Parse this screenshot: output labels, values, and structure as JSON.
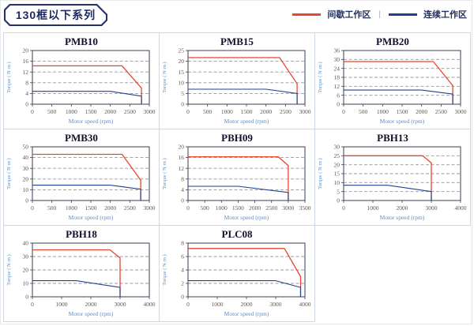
{
  "header": {
    "title": "130框以下系列",
    "legend": [
      {
        "label": "间歇工作区",
        "color": "#e8462c"
      },
      {
        "label": "连续工作区",
        "color": "#24418e"
      }
    ],
    "legend_separator": "|"
  },
  "colors": {
    "intermittent": "#e8462c",
    "continuous": "#24418e",
    "grid_line": "#999999",
    "plot_frame": "#3e3e52",
    "cell_border": "#cdd8e4",
    "axis_label_blue": "#5d8ec6",
    "tick_label": "#5f574e",
    "title_navy": "#1d2a66"
  },
  "chart_data": [
    {
      "type": "line",
      "title": "PMB10",
      "xlabel": "Motor speed (rpm)",
      "ylabel": "Torque ( N·m )",
      "xlim": [
        0,
        3000
      ],
      "xstep": 500,
      "ylim": [
        0,
        20
      ],
      "ystep": 4,
      "grid": "dashed-horizontal",
      "legend_position": "none",
      "series": [
        {
          "name": "间歇工作区",
          "color": "#e8462c",
          "points": [
            [
              0,
              14.3
            ],
            [
              2300,
              14.3
            ],
            [
              2800,
              6
            ],
            [
              2800,
              0
            ]
          ]
        },
        {
          "name": "连续工作区",
          "color": "#24418e",
          "points": [
            [
              0,
              4.8
            ],
            [
              2000,
              4.8
            ],
            [
              2800,
              3
            ],
            [
              2800,
              0
            ]
          ]
        }
      ]
    },
    {
      "type": "line",
      "title": "PMB15",
      "xlabel": "Motor speed (rpm)",
      "ylabel": "Torque ( N·m )",
      "xlim": [
        0,
        3000
      ],
      "xstep": 500,
      "ylim": [
        0,
        25
      ],
      "ystep": 5,
      "grid": "dashed-horizontal",
      "legend_position": "none",
      "series": [
        {
          "name": "间歇工作区",
          "color": "#e8462c",
          "points": [
            [
              0,
              21.7
            ],
            [
              2350,
              21.7
            ],
            [
              2800,
              9.5
            ],
            [
              2800,
              0
            ]
          ]
        },
        {
          "name": "连续工作区",
          "color": "#24418e",
          "points": [
            [
              0,
              7
            ],
            [
              2000,
              7
            ],
            [
              2800,
              5
            ],
            [
              2800,
              0
            ]
          ]
        }
      ]
    },
    {
      "type": "line",
      "title": "PMB20",
      "xlabel": "Motor speed (rpm)",
      "ylabel": "Torque ( N·m )",
      "xlim": [
        0,
        3000
      ],
      "xstep": 500,
      "ylim": [
        0,
        36
      ],
      "ystep": 6,
      "grid": "dashed-horizontal",
      "legend_position": "none",
      "series": [
        {
          "name": "间歇工作区",
          "color": "#e8462c",
          "points": [
            [
              0,
              28.6
            ],
            [
              2300,
              28.6
            ],
            [
              2800,
              12.5
            ],
            [
              2800,
              0
            ]
          ]
        },
        {
          "name": "连续工作区",
          "color": "#24418e",
          "points": [
            [
              0,
              9.5
            ],
            [
              2000,
              9.5
            ],
            [
              2800,
              6.8
            ],
            [
              2800,
              0
            ]
          ]
        }
      ]
    },
    {
      "type": "line",
      "title": "PMB30",
      "xlabel": "Motor speed (rpm)",
      "ylabel": "Torque ( N·m )",
      "xlim": [
        0,
        3000
      ],
      "xstep": 500,
      "ylim": [
        0,
        50
      ],
      "ystep": 10,
      "grid": "dashed-horizontal",
      "legend_position": "none",
      "series": [
        {
          "name": "间歇工作区",
          "color": "#e8462c",
          "points": [
            [
              0,
              43
            ],
            [
              2300,
              43
            ],
            [
              2780,
              19
            ],
            [
              2780,
              0
            ]
          ]
        },
        {
          "name": "连续工作区",
          "color": "#24418e",
          "points": [
            [
              0,
              14.3
            ],
            [
              2000,
              14.3
            ],
            [
              2780,
              10.5
            ],
            [
              2780,
              0
            ]
          ]
        }
      ]
    },
    {
      "type": "line",
      "title": "PBH09",
      "xlabel": "Motor speed (rpm)",
      "ylabel": "Torque ( N·m )",
      "xlim": [
        0,
        3500
      ],
      "xstep": 500,
      "ylim": [
        0,
        20
      ],
      "ystep": 4,
      "grid": "dashed-horizontal",
      "legend_position": "none",
      "series": [
        {
          "name": "间歇工作区",
          "color": "#e8462c",
          "points": [
            [
              0,
              16.3
            ],
            [
              2700,
              16.3
            ],
            [
              3000,
              13
            ],
            [
              3000,
              0
            ]
          ]
        },
        {
          "name": "连续工作区",
          "color": "#24418e",
          "points": [
            [
              0,
              5.3
            ],
            [
              1500,
              5.3
            ],
            [
              3000,
              3
            ],
            [
              3000,
              0
            ]
          ]
        }
      ]
    },
    {
      "type": "line",
      "title": "PBH13",
      "xlabel": "Motor speed (rpm)",
      "ylabel": "Torque ( N·m )",
      "xlim": [
        0,
        4000
      ],
      "xstep": 1000,
      "ylim": [
        0,
        30
      ],
      "ystep": 5,
      "grid": "dashed-horizontal",
      "legend_position": "none",
      "series": [
        {
          "name": "间歇工作区",
          "color": "#e8462c",
          "points": [
            [
              0,
              25
            ],
            [
              2700,
              25
            ],
            [
              3000,
              21
            ],
            [
              3000,
              0
            ]
          ]
        },
        {
          "name": "连续工作区",
          "color": "#24418e",
          "points": [
            [
              0,
              8.5
            ],
            [
              1500,
              8.5
            ],
            [
              3000,
              5
            ],
            [
              3000,
              0
            ]
          ]
        }
      ]
    },
    {
      "type": "line",
      "title": "PBH18",
      "xlabel": "Motor speed (rpm)",
      "ylabel": "Torque ( N·m )",
      "xlim": [
        0,
        4000
      ],
      "xstep": 1000,
      "ylim": [
        0,
        40
      ],
      "ystep": 10,
      "grid": "dashed-horizontal",
      "legend_position": "none",
      "series": [
        {
          "name": "间歇工作区",
          "color": "#e8462c",
          "points": [
            [
              0,
              35
            ],
            [
              2650,
              35
            ],
            [
              3000,
              29
            ],
            [
              3000,
              0
            ]
          ]
        },
        {
          "name": "连续工作区",
          "color": "#24418e",
          "points": [
            [
              0,
              12
            ],
            [
              1500,
              12
            ],
            [
              3000,
              7
            ],
            [
              3000,
              0
            ]
          ]
        }
      ]
    },
    {
      "type": "line",
      "title": "PLC08",
      "xlabel": "Motor speed (rpm)",
      "ylabel": "Torque ( N·m )",
      "xlim": [
        0,
        4000
      ],
      "xstep": 1000,
      "ylim": [
        0,
        8
      ],
      "ystep": 2,
      "grid": "dashed-horizontal",
      "legend_position": "none",
      "series": [
        {
          "name": "间歇工作区",
          "color": "#e8462c",
          "points": [
            [
              0,
              7.2
            ],
            [
              3300,
              7.2
            ],
            [
              3850,
              3
            ],
            [
              3850,
              0
            ]
          ]
        },
        {
          "name": "连续工作区",
          "color": "#24418e",
          "points": [
            [
              0,
              2.4
            ],
            [
              3000,
              2.4
            ],
            [
              3850,
              1.4
            ],
            [
              3850,
              0
            ]
          ]
        }
      ]
    }
  ]
}
